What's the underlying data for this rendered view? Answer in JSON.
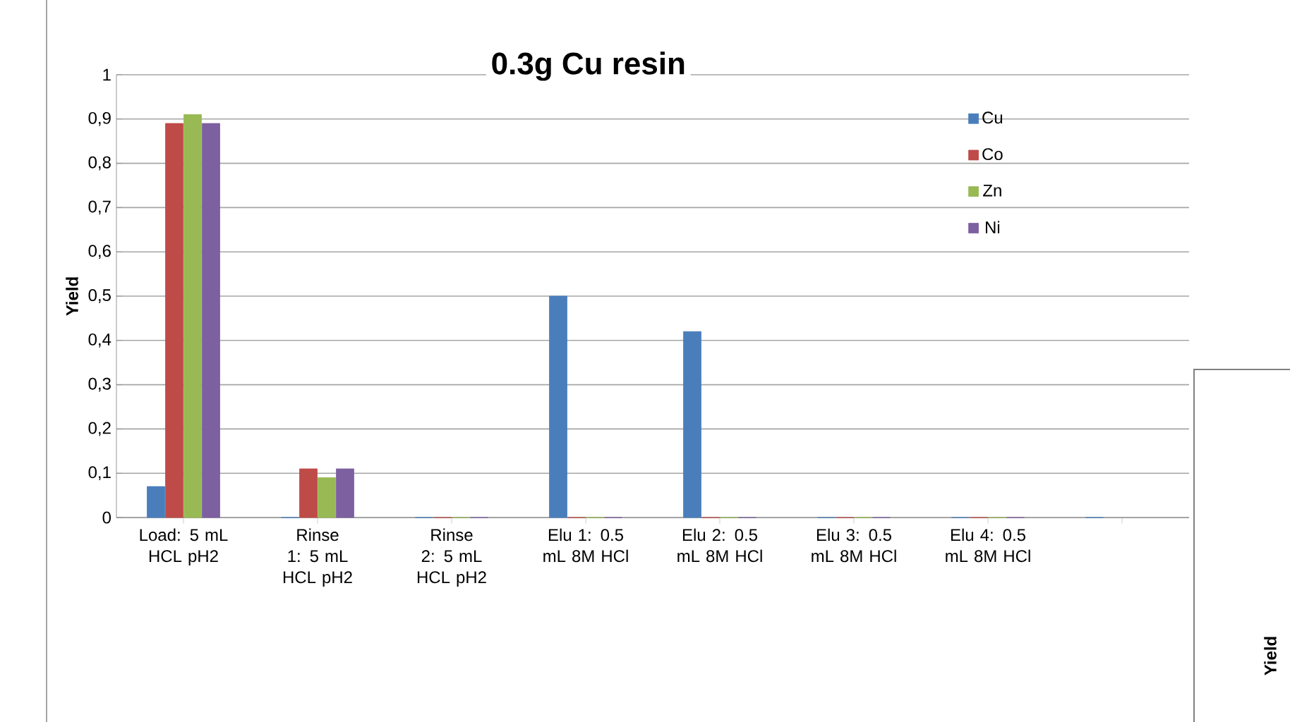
{
  "chart_data": [
    {
      "type": "bar",
      "title": "0.3g Cu resin",
      "ylabel": "Yield",
      "categories": [
        "Load:   5 mL HCL pH2",
        "Rinse 1: 5 mL HCL pH2",
        "Rinse 2: 5 mL HCL pH2",
        "Elu 1: 0.5 mL 8M HCl",
        "Elu 2: 0.5 mL 8M HCl",
        "Elu 3: 0.5 mL 8M HCl",
        "Elu 4: 0.5 mL 8M HCl",
        null
      ],
      "series": [
        {
          "name": "Cu",
          "color": "#4a7ebb",
          "values": [
            0.07,
            0,
            0,
            0.5,
            0.42,
            0,
            0,
            0
          ]
        },
        {
          "name": "Co",
          "color": "#be4b48",
          "values": [
            0.89,
            0.11,
            0,
            0,
            0,
            0,
            0,
            null
          ]
        },
        {
          "name": "Zn",
          "color": "#98b954",
          "values": [
            0.91,
            0.09,
            0,
            0,
            0,
            0,
            0,
            null
          ]
        },
        {
          "name": "Ni",
          "color": "#7d60a0",
          "values": [
            0.89,
            0.11,
            0,
            0,
            0,
            0,
            0,
            null
          ]
        }
      ],
      "ylim": [
        0,
        1
      ],
      "yticks": [
        0,
        {
          "value": 0.1,
          "label": "0,1"
        },
        {
          "value": 0.2,
          "label": "0,2"
        },
        {
          "value": 0.3,
          "label": "0,3"
        },
        {
          "value": 0.4,
          "label": "0,4"
        },
        {
          "value": 0.5,
          "label": "0,5"
        },
        {
          "value": 0.6,
          "label": "0,6"
        },
        {
          "value": 0.7,
          "label": "0,7"
        },
        {
          "value": 0.8,
          "label": "0,8"
        },
        {
          "value": 0.9,
          "label": "0,9"
        },
        1
      ],
      "grid": "y",
      "legend": "top right"
    },
    {
      "type": "other",
      "ylabel": "Yield"
    }
  ]
}
